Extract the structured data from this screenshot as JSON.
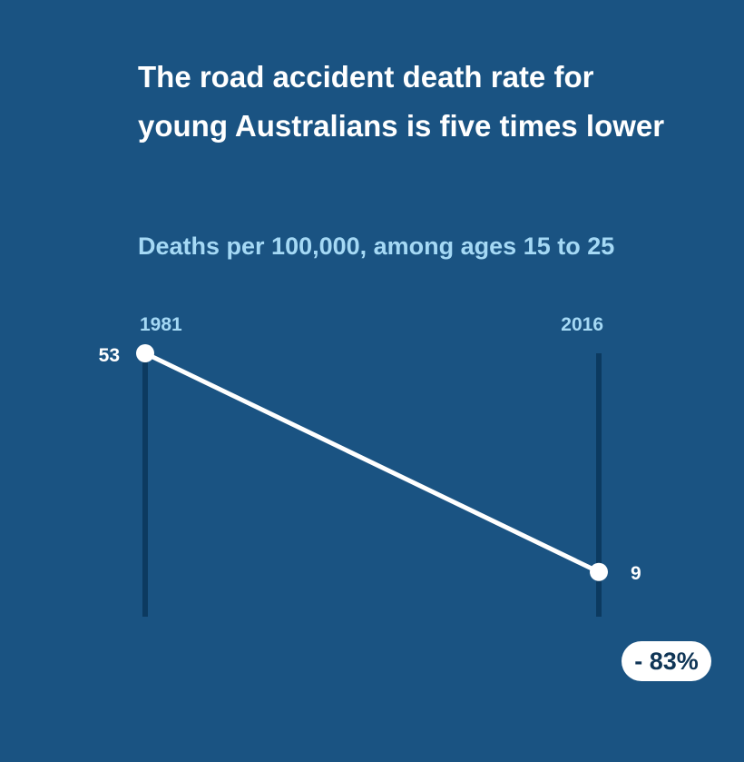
{
  "chart_data": {
    "type": "line",
    "title": "The road accident death rate for young Australians is five times lower",
    "subtitle": "Deaths per 100,000, among ages 15 to 25",
    "x": [
      "1981",
      "2016"
    ],
    "values": [
      53,
      9
    ],
    "value_labels": [
      "53",
      "9"
    ],
    "ylim": [
      0,
      53
    ],
    "grid": false,
    "legend": "none",
    "annotation": "- 83%"
  },
  "colors": {
    "background": "#1a5382",
    "line": "#ffffff",
    "axis": "#0c3a60",
    "year_label": "#a5d9f5",
    "value_label": "#ffffff",
    "badge_text": "#0f3556"
  }
}
